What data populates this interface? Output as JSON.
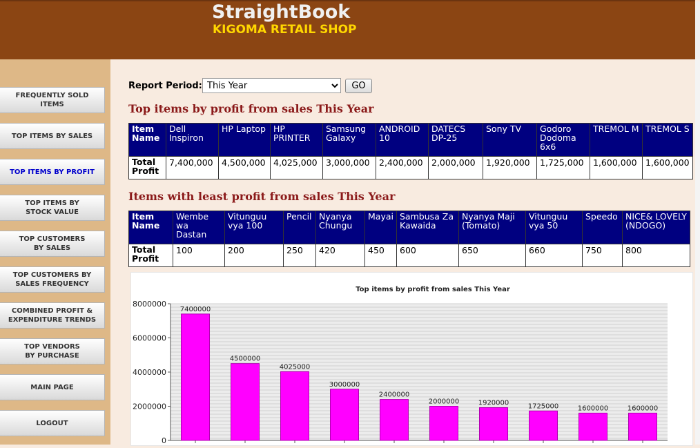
{
  "header": {
    "app_title": "StraightBook",
    "shop_name": "KIGOMA RETAIL SHOP"
  },
  "sidebar": {
    "items": [
      {
        "label_lines": [
          "FREQUENTLY SOLD",
          "ITEMS"
        ]
      },
      {
        "label_lines": [
          "TOP ITEMS BY SALES"
        ]
      },
      {
        "label_lines": [
          "TOP ITEMS BY PROFIT"
        ]
      },
      {
        "label_lines": [
          "TOP ITEMS BY",
          "STOCK VALUE"
        ]
      },
      {
        "label_lines": [
          "TOP CUSTOMERS",
          "BY SALES"
        ]
      },
      {
        "label_lines": [
          "TOP CUSTOMERS BY",
          "SALES FREQUENCY"
        ]
      },
      {
        "label_lines": [
          "COMBINED PROFIT &",
          "EXPENDITURE TRENDS"
        ]
      },
      {
        "label_lines": [
          "TOP VENDORS",
          "BY PURCHASE"
        ]
      },
      {
        "label_lines": [
          "MAIN PAGE"
        ]
      },
      {
        "label_lines": [
          "LOGOUT"
        ]
      }
    ],
    "active_index": 2
  },
  "filter": {
    "label": "Report Period:",
    "selected": "This Year",
    "go_label": "GO"
  },
  "top_table": {
    "title": "Top items by profit from sales This Year",
    "row_name_label": [
      "Item",
      "Name"
    ],
    "row_value_label": [
      "Total",
      "Profit"
    ],
    "items": [
      {
        "name": "Dell Inspiron",
        "profit": "7,400,000"
      },
      {
        "name": "HP Laptop",
        "profit": "4,500,000"
      },
      {
        "name": "HP PRINTER",
        "profit": "4,025,000"
      },
      {
        "name": "Samsung Galaxy",
        "profit": "3,000,000"
      },
      {
        "name": "ANDROID 10",
        "profit": "2,400,000"
      },
      {
        "name": "DATECS DP-25",
        "profit": "2,000,000"
      },
      {
        "name": "Sony TV",
        "profit": "1,920,000"
      },
      {
        "name": "Godoro Dodoma 6x6",
        "profit": "1,725,000"
      },
      {
        "name": "TREMOL M",
        "profit": "1,600,000"
      },
      {
        "name": "TREMOL S",
        "profit": "1,600,000"
      }
    ]
  },
  "least_table": {
    "title": "Items with least profit from sales This Year",
    "row_name_label": [
      "Item",
      "Name"
    ],
    "row_value_label": [
      "Total",
      "Profit"
    ],
    "items": [
      {
        "name": "Wembe wa Dastan",
        "profit": "100"
      },
      {
        "name": "Vitunguu vya 100",
        "profit": "200"
      },
      {
        "name": "Pencil",
        "profit": "250"
      },
      {
        "name": "Nyanya Chungu",
        "profit": "420"
      },
      {
        "name": "Mayai",
        "profit": "450"
      },
      {
        "name": "Sambusa Za Kawaida",
        "profit": "600"
      },
      {
        "name": "Nyanya Maji (Tomato)",
        "profit": "650"
      },
      {
        "name": "Vitunguu vya 50",
        "profit": "660"
      },
      {
        "name": "Speedo",
        "profit": "750"
      },
      {
        "name": "NICE& LOVELY (NDOGO)",
        "profit": "800"
      }
    ]
  },
  "chart_data": {
    "type": "bar",
    "title": "Top items by profit from sales This Year",
    "categories": [
      "Dell Inspiron",
      "HP Laptop",
      "HP PRINTER",
      "Samsung Galaxy",
      "ANDROID 10",
      "DATECS DP-25",
      "Sony TV",
      "Godoro Dodoma 6x6",
      "TREMOL M",
      "TREMOL S"
    ],
    "values": [
      7400000,
      4500000,
      4025000,
      3000000,
      2400000,
      2000000,
      1920000,
      1725000,
      1600000,
      1600000
    ],
    "ylim": [
      0,
      8000000
    ],
    "yticks": [
      "0",
      "2000000",
      "4000000",
      "6000000",
      "8000000"
    ],
    "bar_color": "#ff00ff",
    "grid": true
  },
  "colors": {
    "header_bg": "#8b4513",
    "sidebar_bg": "#deb887",
    "table_header_bg": "#000080",
    "title_color": "#8b1a1a"
  }
}
